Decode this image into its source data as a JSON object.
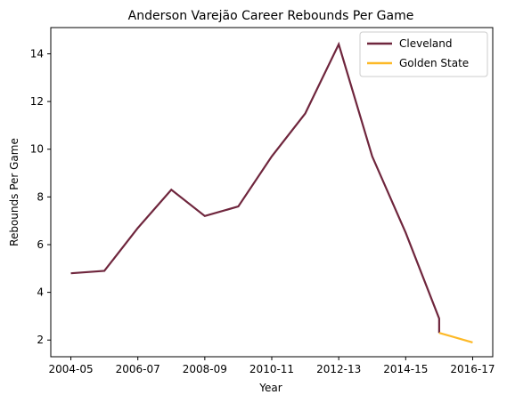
{
  "chart_data": {
    "type": "line",
    "title": "Anderson Varejão Career Rebounds Per Game",
    "xlabel": "Year",
    "ylabel": "Rebounds Per Game",
    "x_tick_labels": [
      "2004-05",
      "2006-07",
      "2008-09",
      "2010-11",
      "2012-13",
      "2014-15",
      "2016-17"
    ],
    "y_ticks": [
      2,
      4,
      6,
      8,
      10,
      12,
      14
    ],
    "ylim": [
      1.3,
      15.1
    ],
    "legend_position": "top-right",
    "grid": false,
    "series": [
      {
        "name": "Cleveland",
        "color": "#6f263d",
        "points": [
          {
            "season": "2004-05",
            "value": 4.8
          },
          {
            "season": "2005-06",
            "value": 4.9
          },
          {
            "season": "2006-07",
            "value": 6.7
          },
          {
            "season": "2007-08",
            "value": 8.3
          },
          {
            "season": "2008-09",
            "value": 7.2
          },
          {
            "season": "2009-10",
            "value": 7.6
          },
          {
            "season": "2010-11",
            "value": 9.7
          },
          {
            "season": "2011-12",
            "value": 11.5
          },
          {
            "season": "2012-13",
            "value": 14.4
          },
          {
            "season": "2013-14",
            "value": 9.7
          },
          {
            "season": "2014-15",
            "value": 6.5
          },
          {
            "season": "2015-16",
            "value": 2.9
          },
          {
            "season": "2015-16",
            "value": 2.3
          }
        ]
      },
      {
        "name": "Golden State",
        "color": "#fdb927",
        "points": [
          {
            "season": "2015-16",
            "value": 2.3
          },
          {
            "season": "2016-17",
            "value": 1.9
          }
        ]
      }
    ]
  }
}
